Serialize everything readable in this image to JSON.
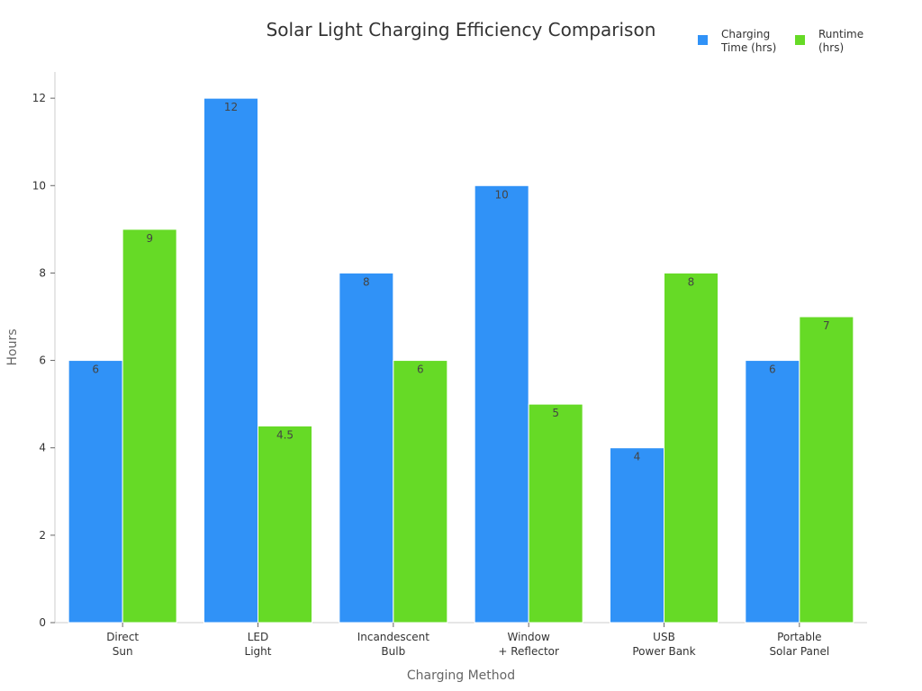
{
  "chart_data": {
    "type": "bar",
    "title": "Solar Light Charging Efficiency Comparison",
    "xlabel": "Charging Method",
    "ylabel": "Hours",
    "ylim": [
      0,
      12.6
    ],
    "yticks": [
      0,
      2,
      4,
      6,
      8,
      10,
      12
    ],
    "grid": false,
    "legend_position": "top-right",
    "categories": [
      [
        "Direct",
        "Sun"
      ],
      [
        "LED",
        "Light"
      ],
      [
        "Incandescent",
        "Bulb"
      ],
      [
        "Window",
        "+ Reflector"
      ],
      [
        "USB",
        "Power Bank"
      ],
      [
        "Portable",
        "Solar Panel"
      ]
    ],
    "series": [
      {
        "name": [
          "Charging",
          "Time (hrs)"
        ],
        "color": "#3092f7",
        "values": [
          6,
          12,
          8,
          10,
          4,
          6
        ],
        "labels": [
          "6",
          "12",
          "8",
          "10",
          "4",
          "6"
        ]
      },
      {
        "name": [
          "Runtime",
          "(hrs)"
        ],
        "color": "#66da26",
        "values": [
          9,
          4.5,
          6,
          5,
          8,
          7
        ],
        "labels": [
          "9",
          "4.5",
          "6",
          "5",
          "8",
          "7"
        ]
      }
    ]
  }
}
